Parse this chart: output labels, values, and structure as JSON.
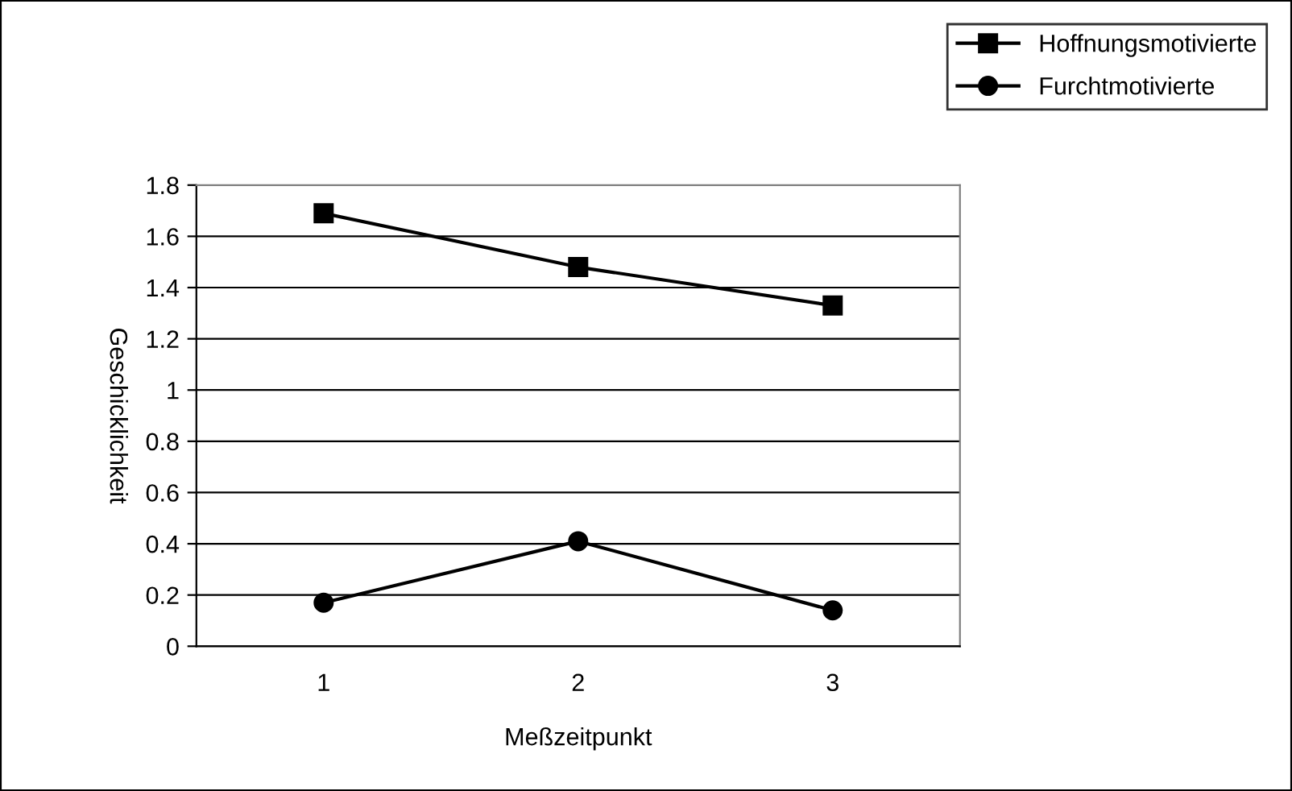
{
  "chart_data": {
    "type": "line",
    "xlabel": "Meßzeitpunkt",
    "ylabel": "Geschicklichkeit",
    "categories": [
      "1",
      "2",
      "3"
    ],
    "series": [
      {
        "name": "Hoffnungsmotivierte",
        "color": "#000000",
        "marker": "square",
        "values": [
          1.69,
          1.48,
          1.33
        ]
      },
      {
        "name": "Furchtmotivierte",
        "color": "#000000",
        "marker": "circle",
        "values": [
          0.17,
          0.41,
          0.14
        ]
      }
    ],
    "ylim": [
      0,
      1.8
    ],
    "yticks": [
      0,
      0.2,
      0.4,
      0.6,
      0.8,
      1,
      1.2,
      1.4,
      1.6,
      1.8
    ],
    "grid": "y",
    "legend": "top right",
    "line_style": "solid"
  }
}
